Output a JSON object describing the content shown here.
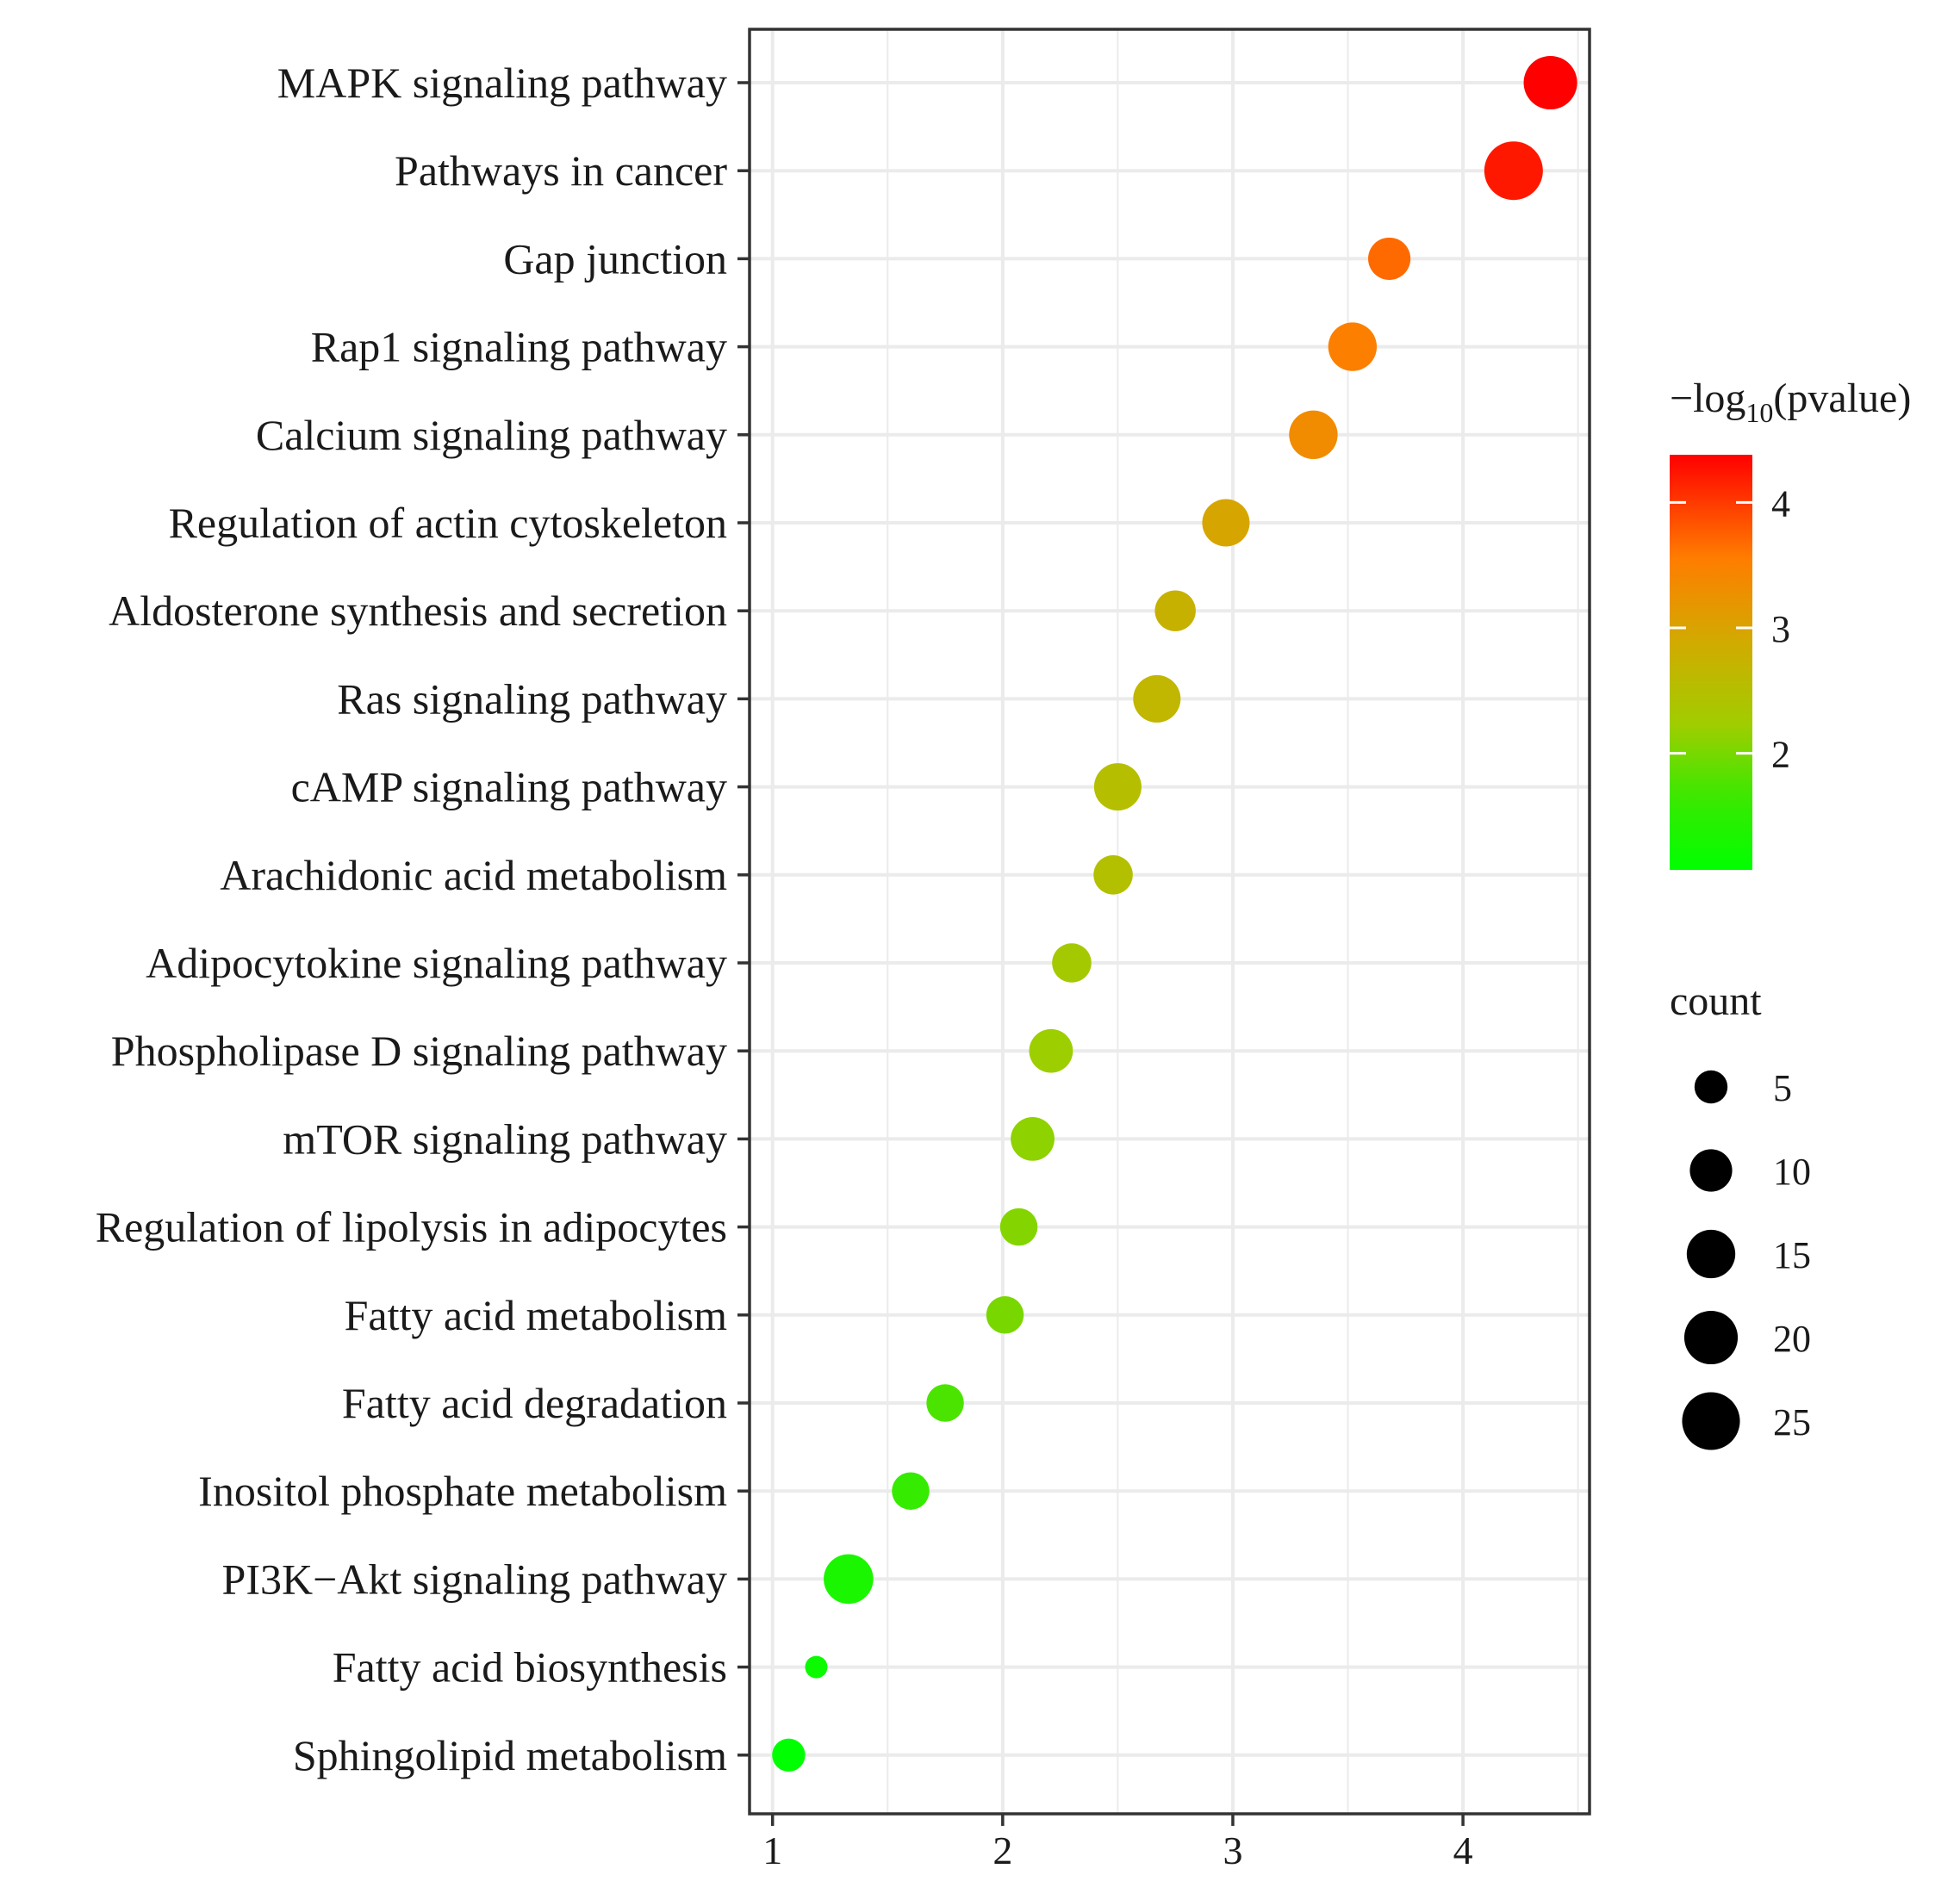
{
  "chart_data": {
    "type": "scatter",
    "title": "",
    "xlabel": "",
    "ylabel": "",
    "xlim": [
      0.9,
      4.55
    ],
    "x_ticks": [
      1,
      2,
      3,
      4
    ],
    "x_tick_labels": [
      "1",
      "2",
      "3",
      "4"
    ],
    "grid": true,
    "categories": [
      "MAPK signaling pathway",
      "Pathways in cancer",
      "Gap junction",
      "Rap1 signaling pathway",
      "Calcium signaling pathway",
      "Regulation of actin cytoskeleton",
      "Aldosterone synthesis and secretion",
      "Ras signaling pathway",
      "cAMP signaling pathway",
      "Arachidonic acid metabolism",
      "Adipocytokine signaling pathway",
      "Phospholipase D signaling pathway",
      "mTOR signaling pathway",
      "Regulation of lipolysis in adipocytes",
      "Fatty acid metabolism",
      "Fatty acid degradation",
      "Inositol phosphate metabolism",
      "PI3K−Akt signaling pathway",
      "Fatty acid biosynthesis",
      "Sphingolipid metabolism"
    ],
    "points": [
      {
        "pathway": "MAPK signaling pathway",
        "x": 4.38,
        "neg_log10_p": 4.38,
        "count": 20
      },
      {
        "pathway": "Pathways in cancer",
        "x": 4.22,
        "neg_log10_p": 4.22,
        "count": 26
      },
      {
        "pathway": "Gap junction",
        "x": 3.68,
        "neg_log10_p": 3.68,
        "count": 10
      },
      {
        "pathway": "Rap1 signaling pathway",
        "x": 3.52,
        "neg_log10_p": 3.52,
        "count": 15
      },
      {
        "pathway": "Calcium signaling pathway",
        "x": 3.35,
        "neg_log10_p": 3.35,
        "count": 15
      },
      {
        "pathway": "Regulation of actin cytoskeleton",
        "x": 2.97,
        "neg_log10_p": 2.97,
        "count": 14
      },
      {
        "pathway": "Aldosterone synthesis and secretion",
        "x": 2.75,
        "neg_log10_p": 2.75,
        "count": 9
      },
      {
        "pathway": "Ras signaling pathway",
        "x": 2.67,
        "neg_log10_p": 2.67,
        "count": 14
      },
      {
        "pathway": "cAMP signaling pathway",
        "x": 2.5,
        "neg_log10_p": 2.5,
        "count": 14
      },
      {
        "pathway": "Arachidonic acid metabolism",
        "x": 2.48,
        "neg_log10_p": 2.48,
        "count": 8
      },
      {
        "pathway": "Adipocytokine signaling pathway",
        "x": 2.3,
        "neg_log10_p": 2.3,
        "count": 8
      },
      {
        "pathway": "Phospholipase D signaling pathway",
        "x": 2.21,
        "neg_log10_p": 2.21,
        "count": 11
      },
      {
        "pathway": "mTOR signaling pathway",
        "x": 2.13,
        "neg_log10_p": 2.13,
        "count": 11
      },
      {
        "pathway": "Regulation of lipolysis in adipocytes",
        "x": 2.07,
        "neg_log10_p": 2.07,
        "count": 7
      },
      {
        "pathway": "Fatty acid metabolism",
        "x": 2.01,
        "neg_log10_p": 2.01,
        "count": 7
      },
      {
        "pathway": "Fatty acid degradation",
        "x": 1.75,
        "neg_log10_p": 1.75,
        "count": 7
      },
      {
        "pathway": "Inositol phosphate metabolism",
        "x": 1.6,
        "neg_log10_p": 1.6,
        "count": 7
      },
      {
        "pathway": "PI3K−Akt signaling pathway",
        "x": 1.33,
        "neg_log10_p": 1.33,
        "count": 16
      },
      {
        "pathway": "Fatty acid biosynthesis",
        "x": 1.19,
        "neg_log10_p": 1.19,
        "count": 3
      },
      {
        "pathway": "Sphingolipid metabolism",
        "x": 1.07,
        "neg_log10_p": 1.07,
        "count": 5
      }
    ],
    "color_legend": {
      "title_prefix": "−log",
      "title_subscript": "10",
      "title_suffix": "(pvalue)",
      "range": [
        1.07,
        4.38
      ],
      "ticks": [
        2,
        3,
        4
      ],
      "tick_labels": [
        "2",
        "3",
        "4"
      ],
      "low_color": "#00ff00",
      "high_color": "#ff0000"
    },
    "size_legend": {
      "title": "count",
      "values": [
        5,
        10,
        15,
        20,
        25
      ],
      "labels": [
        "5",
        "10",
        "15",
        "20",
        "25"
      ],
      "color": "#000000"
    },
    "colors": {
      "grid": "#ebebeb",
      "panel_border": "#333333",
      "axis_text": "#1a1a1a"
    }
  }
}
